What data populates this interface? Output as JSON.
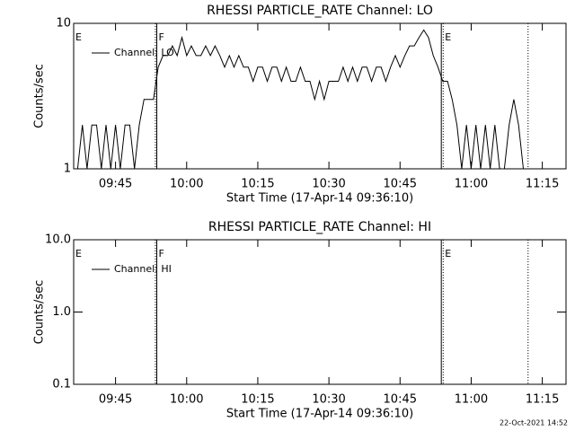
{
  "chart_data": [
    {
      "type": "line",
      "title": "RHESSI PARTICLE_RATE Channel: LO",
      "xlabel": "Start Time (17-Apr-14 09:36:10)",
      "ylabel": "Counts/sec",
      "log_y": true,
      "xlim": [
        576.17,
        680
      ],
      "ylim": [
        1,
        10
      ],
      "xticks": [
        {
          "value": 585,
          "label": "09:45"
        },
        {
          "value": 600,
          "label": "10:00"
        },
        {
          "value": 615,
          "label": "10:15"
        },
        {
          "value": 630,
          "label": "10:30"
        },
        {
          "value": 645,
          "label": "10:45"
        },
        {
          "value": 660,
          "label": "11:00"
        },
        {
          "value": 675,
          "label": "11:15"
        }
      ],
      "yticks": [
        1,
        10
      ],
      "legend": "upper left",
      "x": [
        577,
        578,
        579,
        580,
        581,
        582,
        583,
        584,
        585,
        586,
        587,
        588,
        589,
        590,
        591,
        592,
        593,
        594,
        595,
        596,
        597,
        598,
        599,
        600,
        601,
        602,
        603,
        604,
        605,
        606,
        607,
        608,
        609,
        610,
        611,
        612,
        613,
        614,
        615,
        616,
        617,
        618,
        619,
        620,
        621,
        622,
        623,
        624,
        625,
        626,
        627,
        628,
        629,
        630,
        631,
        632,
        633,
        634,
        635,
        636,
        637,
        638,
        639,
        640,
        641,
        642,
        643,
        644,
        645,
        646,
        647,
        648,
        649,
        650,
        651,
        652,
        653,
        654,
        655,
        656,
        657,
        658,
        659,
        660,
        661,
        662,
        663,
        664,
        665,
        666,
        667,
        668,
        669,
        670,
        671
      ],
      "series": [
        {
          "name": "Channel: LO",
          "color": "#000000",
          "values": [
            1,
            2,
            1,
            2,
            2,
            1,
            2,
            1,
            2,
            1,
            2,
            2,
            1,
            2,
            3,
            3,
            3,
            5,
            6,
            6,
            7,
            6,
            8,
            6,
            7,
            6,
            6,
            7,
            6,
            7,
            6,
            5,
            6,
            5,
            6,
            5,
            5,
            4,
            5,
            5,
            4,
            5,
            5,
            4,
            5,
            4,
            4,
            5,
            4,
            4,
            3,
            4,
            3,
            4,
            4,
            4,
            5,
            4,
            5,
            4,
            5,
            5,
            4,
            5,
            5,
            4,
            5,
            6,
            5,
            6,
            7,
            7,
            8,
            9,
            8,
            6,
            5,
            4,
            4,
            3,
            2,
            1,
            2,
            1,
            2,
            1,
            2,
            1,
            2,
            1,
            1,
            2,
            3,
            2,
            1
          ]
        }
      ],
      "vlines": [
        {
          "x": 593.4,
          "style": "dotted"
        },
        {
          "x": 593.7,
          "style": "solid"
        },
        {
          "x": 653.7,
          "style": "solid"
        },
        {
          "x": 654.1,
          "style": "dotted"
        },
        {
          "x": 672,
          "style": "dotted"
        }
      ],
      "annotations": [
        {
          "text": "E",
          "x": 576.17
        },
        {
          "text": "F",
          "x": 593.7
        },
        {
          "text": "E",
          "x": 654.1
        }
      ]
    },
    {
      "type": "line",
      "title": "RHESSI PARTICLE_RATE Channel: HI",
      "xlabel": "Start Time (17-Apr-14 09:36:10)",
      "ylabel": "Counts/sec",
      "log_y": true,
      "xlim": [
        576.17,
        680
      ],
      "ylim": [
        0.1,
        10
      ],
      "xticks": [
        {
          "value": 585,
          "label": "09:45"
        },
        {
          "value": 600,
          "label": "10:00"
        },
        {
          "value": 615,
          "label": "10:15"
        },
        {
          "value": 630,
          "label": "10:30"
        },
        {
          "value": 645,
          "label": "10:45"
        },
        {
          "value": 660,
          "label": "11:00"
        },
        {
          "value": 675,
          "label": "11:15"
        }
      ],
      "yticks": [
        0.1,
        {
          "value": 1,
          "label": "1.0"
        },
        {
          "value": 10,
          "label": "10.0"
        }
      ],
      "legend": "upper left",
      "x": [],
      "series": [
        {
          "name": "Channel: HI",
          "color": "#000000",
          "values": []
        }
      ],
      "vlines": [
        {
          "x": 593.4,
          "style": "dotted"
        },
        {
          "x": 593.7,
          "style": "solid"
        },
        {
          "x": 653.7,
          "style": "solid"
        },
        {
          "x": 654.1,
          "style": "dotted"
        },
        {
          "x": 672,
          "style": "dotted"
        }
      ],
      "annotations": [
        {
          "text": "E",
          "x": 576.17
        },
        {
          "text": "F",
          "x": 593.7
        },
        {
          "text": "E",
          "x": 654.1
        }
      ]
    }
  ],
  "footer": "22-Oct-2021 14:52"
}
